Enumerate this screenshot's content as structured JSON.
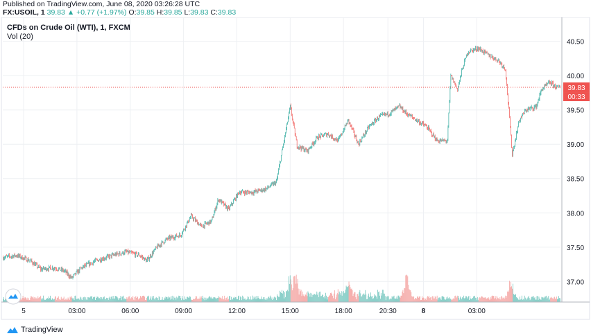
{
  "header": {
    "published": "Published on TradingView.com, June 08, 2020 03:26:28 UTC",
    "symbol": "FX:USOIL, 1",
    "last": "39.83",
    "change": "▲ +0.77 (+1.97%)",
    "open_label": "O:",
    "open": "39.85",
    "high_label": "H:",
    "high": "39.85",
    "low_label": "L:",
    "low": "39.83",
    "close_label": "C:",
    "close": "39.83"
  },
  "footer": {
    "brand": "TradingView",
    "logo_icon": "tradingview-logo-icon"
  },
  "colors": {
    "up": "#26a69a",
    "down": "#ef5350",
    "grid": "#eef0f3",
    "text": "#131722",
    "axis": "#b2b5be"
  },
  "chart_data": {
    "type": "candlestick",
    "title": "CFDs on Crude Oil (WTI), 1, FXCM",
    "subtitle": "Vol (20)",
    "xlabel": "",
    "ylabel": "",
    "ylim": [
      36.7,
      40.85
    ],
    "yticks": [
      "40.50",
      "40.00",
      "39.50",
      "39.00",
      "38.50",
      "38.00",
      "37.50",
      "37.00"
    ],
    "ytick_values": [
      40.5,
      40.0,
      39.5,
      39.0,
      38.5,
      38.0,
      37.5,
      37.0
    ],
    "xticks": [
      "5",
      "03:00",
      "06:00",
      "09:00",
      "12:00",
      "15:00",
      "18:00",
      "20:30",
      "8",
      "03:00"
    ],
    "xtick_index": [
      30,
      108,
      186,
      264,
      342,
      420,
      498,
      563,
      615,
      693
    ],
    "last_price": "39.83",
    "countdown": "00:33",
    "grid": true,
    "close_series_anchors": [
      [
        0,
        37.35
      ],
      [
        20,
        37.38
      ],
      [
        40,
        37.3
      ],
      [
        55,
        37.18
      ],
      [
        75,
        37.2
      ],
      [
        90,
        37.15
      ],
      [
        100,
        37.05
      ],
      [
        115,
        37.2
      ],
      [
        135,
        37.3
      ],
      [
        160,
        37.38
      ],
      [
        180,
        37.43
      ],
      [
        200,
        37.38
      ],
      [
        210,
        37.3
      ],
      [
        225,
        37.5
      ],
      [
        240,
        37.62
      ],
      [
        260,
        37.68
      ],
      [
        275,
        37.95
      ],
      [
        290,
        37.8
      ],
      [
        305,
        37.88
      ],
      [
        315,
        38.2
      ],
      [
        330,
        38.05
      ],
      [
        345,
        38.3
      ],
      [
        365,
        38.3
      ],
      [
        385,
        38.35
      ],
      [
        400,
        38.45
      ],
      [
        410,
        39.0
      ],
      [
        420,
        39.55
      ],
      [
        430,
        38.98
      ],
      [
        445,
        38.9
      ],
      [
        460,
        39.1
      ],
      [
        475,
        39.15
      ],
      [
        490,
        39.05
      ],
      [
        505,
        39.35
      ],
      [
        520,
        39.0
      ],
      [
        535,
        39.25
      ],
      [
        550,
        39.4
      ],
      [
        565,
        39.45
      ],
      [
        580,
        39.55
      ],
      [
        590,
        39.45
      ],
      [
        605,
        39.35
      ],
      [
        620,
        39.25
      ],
      [
        635,
        39.05
      ],
      [
        650,
        39.05
      ],
      [
        655,
        40.0
      ],
      [
        665,
        39.8
      ],
      [
        672,
        40.1
      ],
      [
        680,
        40.35
      ],
      [
        695,
        40.4
      ],
      [
        710,
        40.3
      ],
      [
        725,
        40.22
      ],
      [
        735,
        40.1
      ],
      [
        740,
        39.5
      ],
      [
        745,
        38.85
      ],
      [
        755,
        39.35
      ],
      [
        765,
        39.5
      ],
      [
        780,
        39.55
      ],
      [
        788,
        39.8
      ],
      [
        800,
        39.9
      ],
      [
        810,
        39.83
      ]
    ],
    "volume_spikes": [
      [
        420,
        0.7
      ],
      [
        428,
        0.9
      ],
      [
        505,
        0.7
      ],
      [
        590,
        1.0
      ],
      [
        743,
        0.8
      ]
    ]
  }
}
